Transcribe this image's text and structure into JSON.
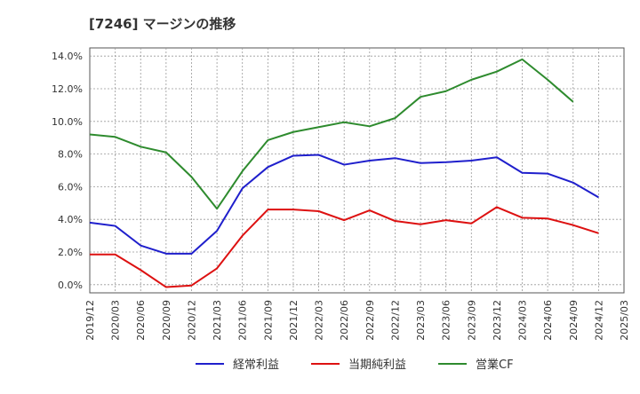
{
  "chart_data": {
    "type": "line",
    "title": "[7246]  マージンの推移",
    "xlabel": "",
    "ylabel": "",
    "x": [
      "2019/12",
      "2020/03",
      "2020/06",
      "2020/09",
      "2020/12",
      "2021/03",
      "2021/06",
      "2021/09",
      "2021/12",
      "2022/03",
      "2022/06",
      "2022/09",
      "2022/12",
      "2023/03",
      "2023/06",
      "2023/09",
      "2023/12",
      "2024/03",
      "2024/06",
      "2024/09",
      "2024/12",
      "2025/03"
    ],
    "ylim": [
      -0.5,
      14.5
    ],
    "yticks": [
      0.0,
      2.0,
      4.0,
      6.0,
      8.0,
      10.0,
      12.0,
      14.0
    ],
    "ytick_labels": [
      "0.0%",
      "2.0%",
      "4.0%",
      "6.0%",
      "8.0%",
      "10.0%",
      "12.0%",
      "14.0%"
    ],
    "grid": true,
    "legend_position": "bottom",
    "series": [
      {
        "name": "経常利益",
        "color": "#1f1fcc",
        "values": [
          3.8,
          3.6,
          2.4,
          1.9,
          1.9,
          3.3,
          5.9,
          7.2,
          7.9,
          7.95,
          7.35,
          7.6,
          7.75,
          7.45,
          7.5,
          7.6,
          7.8,
          6.85,
          6.8,
          6.25,
          5.35,
          null
        ]
      },
      {
        "name": "当期純利益",
        "color": "#dd1111",
        "values": [
          1.85,
          1.85,
          0.9,
          -0.15,
          -0.05,
          1.0,
          3.0,
          4.6,
          4.6,
          4.5,
          3.95,
          4.55,
          3.9,
          3.7,
          3.95,
          3.75,
          4.75,
          4.1,
          4.05,
          3.65,
          3.15,
          null
        ]
      },
      {
        "name": "営業CF",
        "color": "#2e8b2e",
        "values": [
          9.2,
          9.05,
          8.45,
          8.1,
          6.6,
          4.65,
          6.95,
          8.85,
          9.35,
          9.65,
          9.95,
          9.7,
          10.2,
          11.5,
          11.85,
          12.55,
          13.05,
          13.8,
          12.55,
          11.2,
          null,
          null
        ]
      }
    ]
  }
}
